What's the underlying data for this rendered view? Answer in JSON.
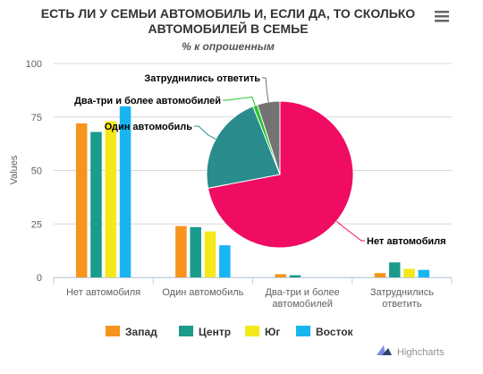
{
  "chart_data": [
    {
      "type": "bar",
      "title": "ЕСТЬ ЛИ У СЕМЬИ АВТОМОБИЛЬ И, ЕСЛИ ДА, ТО СКОЛЬКО АВТОМОБИЛЕЙ В СЕМЬЕ",
      "title_lines": [
        "ЕСТЬ ЛИ У СЕМЬИ АВТОМОБИЛЬ И, ЕСЛИ ДА, ТО СКОЛЬКО",
        "АВТОМОБИЛЕЙ В СЕМЬЕ"
      ],
      "subtitle": "% к опрошенным",
      "ylabel": "Values",
      "ylim": [
        0,
        100
      ],
      "yticks": [
        0,
        25,
        50,
        75,
        100
      ],
      "categories": [
        "Нет автомобиля",
        "Один автомобиль",
        "Два-три и более автомобилей",
        "Затруднились ответить"
      ],
      "category_lines": [
        [
          "Нет автомобиля"
        ],
        [
          "Один автомобиль"
        ],
        [
          "Два-три и более",
          "автомобилей"
        ],
        [
          "Затруднились",
          "ответить"
        ]
      ],
      "grid": true,
      "legend_position": "bottom",
      "series": [
        {
          "name": "Запад",
          "color": "#f7941d",
          "values": [
            72,
            24,
            1.5,
            2
          ]
        },
        {
          "name": "Центр",
          "color": "#1a9b8c",
          "values": [
            68,
            23.5,
            1,
            7
          ]
        },
        {
          "name": "Юг",
          "color": "#f4e81a",
          "values": [
            73,
            21.5,
            0,
            4
          ]
        },
        {
          "name": "Восток",
          "color": "#19b5f0",
          "values": [
            80,
            15,
            0,
            3.5
          ]
        }
      ]
    },
    {
      "type": "pie",
      "slices": [
        {
          "label": "Нет автомобиля",
          "value": 72,
          "color": "#f00c63"
        },
        {
          "label": "Один автомобиль",
          "value": 22,
          "color": "#2a8c8c"
        },
        {
          "label": "Два-три и более автомобилей",
          "value": 1,
          "color": "#26c62a"
        },
        {
          "label": "Затруднились ответить",
          "value": 5,
          "color": "#737373"
        }
      ]
    }
  ],
  "menu_icon": "hamburger-menu-icon",
  "credits": {
    "icon": "highcharts-logo-icon",
    "text": "Highcharts"
  }
}
